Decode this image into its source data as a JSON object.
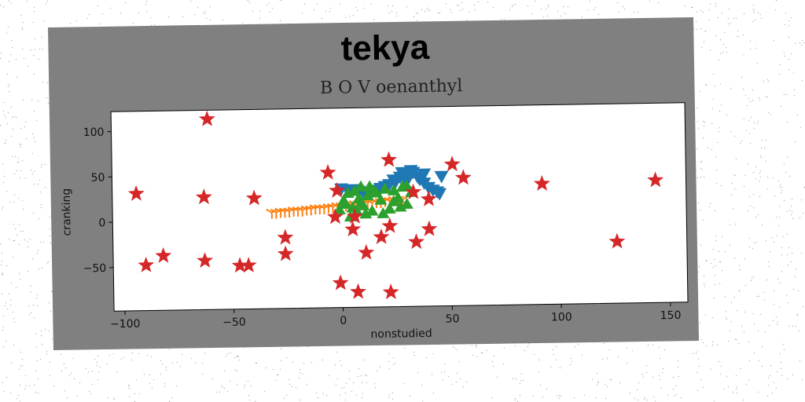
{
  "figure": {
    "title": "tekya",
    "subtitle": "B O V oenanthyl"
  },
  "colors": {
    "figure_bg": "#808080",
    "plot_bg": "#ffffff",
    "series_blue": "#1f77b4",
    "series_orange": "#ff7f0e",
    "series_green": "#2ca02c",
    "series_red": "#d62728"
  },
  "chart_data": {
    "type": "scatter",
    "title": "tekya",
    "subtitle": "B O V oenanthyl",
    "xlabel": "nonstudied",
    "ylabel": "cranking",
    "xlim": [
      -105,
      158
    ],
    "ylim": [
      -98,
      122
    ],
    "xticks": [
      -100,
      -50,
      0,
      50,
      100,
      150
    ],
    "yticks": [
      -50,
      0,
      50,
      100
    ],
    "grid": false,
    "series": [
      {
        "marker": "triangle-down",
        "color": "#1f77b4",
        "points": [
          [
            0,
            33
          ],
          [
            3,
            31
          ],
          [
            5,
            32
          ],
          [
            8,
            30
          ],
          [
            10,
            29
          ],
          [
            12,
            28
          ],
          [
            15,
            31
          ],
          [
            18,
            33
          ],
          [
            20,
            35
          ],
          [
            22,
            37
          ],
          [
            25,
            40
          ],
          [
            27,
            45
          ],
          [
            28,
            50
          ],
          [
            30,
            48
          ],
          [
            32,
            52
          ],
          [
            33,
            50
          ],
          [
            35,
            45
          ],
          [
            36,
            42
          ],
          [
            38,
            38
          ],
          [
            40,
            33
          ],
          [
            42,
            30
          ],
          [
            44,
            28
          ],
          [
            46,
            45
          ],
          [
            45,
            26
          ],
          [
            30,
            40
          ],
          [
            24,
            42
          ],
          [
            38,
            48
          ]
        ]
      },
      {
        "marker": "tri",
        "color": "#ff7f0e",
        "points": [
          [
            -32,
            8
          ],
          [
            -30,
            8
          ],
          [
            -28,
            9
          ],
          [
            -26,
            9
          ],
          [
            -24,
            9
          ],
          [
            -22,
            10
          ],
          [
            -20,
            10
          ],
          [
            -18,
            10
          ],
          [
            -16,
            11
          ],
          [
            -14,
            11
          ],
          [
            -12,
            12
          ],
          [
            -10,
            12
          ],
          [
            -8,
            12
          ],
          [
            -6,
            13
          ],
          [
            -4,
            13
          ],
          [
            -2,
            14
          ],
          [
            0,
            14
          ],
          [
            2,
            15
          ],
          [
            4,
            15
          ],
          [
            6,
            16
          ],
          [
            8,
            16
          ],
          [
            10,
            17
          ],
          [
            12,
            17
          ],
          [
            14,
            17
          ],
          [
            16,
            18
          ],
          [
            18,
            18
          ],
          [
            20,
            19
          ],
          [
            22,
            19
          ],
          [
            24,
            20
          ],
          [
            26,
            20
          ],
          [
            28,
            20
          ]
        ]
      },
      {
        "marker": "triangle-up",
        "color": "#2ca02c",
        "points": [
          [
            -1,
            10
          ],
          [
            1,
            20
          ],
          [
            3,
            28
          ],
          [
            5,
            12
          ],
          [
            6,
            30
          ],
          [
            7,
            8
          ],
          [
            8,
            22
          ],
          [
            9,
            35
          ],
          [
            10,
            14
          ],
          [
            11,
            5
          ],
          [
            12,
            25
          ],
          [
            13,
            35
          ],
          [
            14,
            8
          ],
          [
            16,
            28
          ],
          [
            18,
            20
          ],
          [
            20,
            32
          ],
          [
            22,
            10
          ],
          [
            24,
            30
          ],
          [
            26,
            22
          ],
          [
            28,
            34
          ],
          [
            30,
            15
          ],
          [
            32,
            28
          ],
          [
            4,
            2
          ],
          [
            2,
            16
          ],
          [
            19,
            5
          ],
          [
            27,
            12
          ],
          [
            15,
            30
          ],
          [
            9,
            18
          ],
          [
            30,
            35
          ],
          [
            24,
            18
          ]
        ]
      },
      {
        "marker": "star",
        "color": "#d62728",
        "points": [
          [
            -61,
            112
          ],
          [
            -94,
            31
          ],
          [
            -63,
            26
          ],
          [
            -40,
            24
          ],
          [
            -6,
            51
          ],
          [
            -2,
            31
          ],
          [
            22,
            64
          ],
          [
            51,
            58
          ],
          [
            56,
            43
          ],
          [
            92,
            35
          ],
          [
            144,
            37
          ],
          [
            33,
            28
          ],
          [
            40,
            20
          ],
          [
            -3,
            2
          ],
          [
            6,
            2
          ],
          [
            5,
            -12
          ],
          [
            22,
            -9
          ],
          [
            40,
            -13
          ],
          [
            18,
            -21
          ],
          [
            34,
            -27
          ],
          [
            -26,
            -20
          ],
          [
            -26,
            -38
          ],
          [
            -82,
            -38
          ],
          [
            -90,
            -48
          ],
          [
            -63,
            -44
          ],
          [
            -47,
            -50
          ],
          [
            -43,
            -50
          ],
          [
            11,
            -38
          ],
          [
            126,
            -30
          ],
          [
            -1,
            -71
          ],
          [
            7,
            -81
          ],
          [
            22,
            -82
          ]
        ]
      }
    ]
  }
}
